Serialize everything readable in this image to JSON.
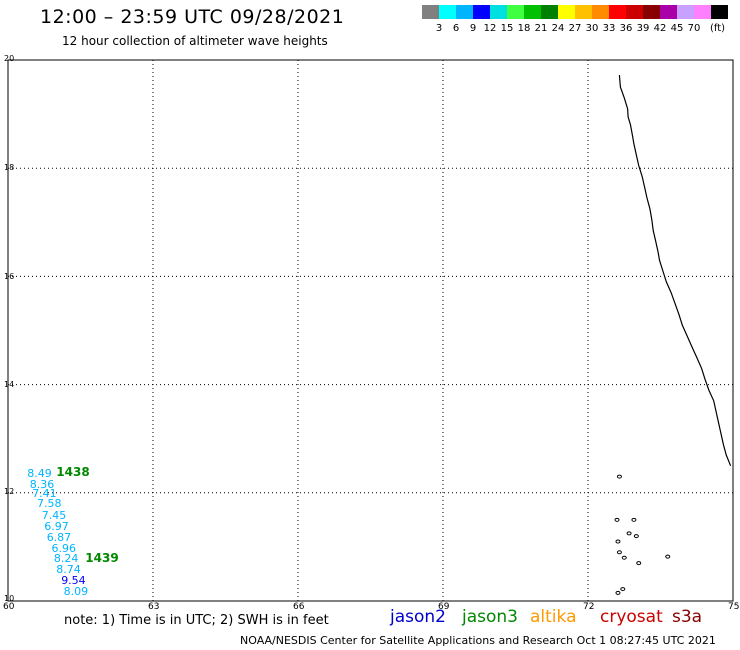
{
  "header": {
    "title": "12:00 – 23:59 UTC 09/28/2021",
    "subtitle": "12 hour collection of altimeter wave heights"
  },
  "legend": {
    "swatches": [
      {
        "color": "#808080",
        "label": ""
      },
      {
        "color": "#00ffff",
        "label": "3"
      },
      {
        "color": "#00b4ff",
        "label": "6"
      },
      {
        "color": "#0000ff",
        "label": "9"
      },
      {
        "color": "#00e0e0",
        "label": "12"
      },
      {
        "color": "#40ff40",
        "label": "15"
      },
      {
        "color": "#00c000",
        "label": "18"
      },
      {
        "color": "#008000",
        "label": "21"
      },
      {
        "color": "#ffff00",
        "label": "24"
      },
      {
        "color": "#ffc000",
        "label": "27"
      },
      {
        "color": "#ff8c00",
        "label": "30"
      },
      {
        "color": "#ff0000",
        "label": "33"
      },
      {
        "color": "#cc0000",
        "label": "36"
      },
      {
        "color": "#880000",
        "label": "39"
      },
      {
        "color": "#aa00aa",
        "label": "42"
      },
      {
        "color": "#c8a0ff",
        "label": "45"
      },
      {
        "color": "#ff80ff",
        "label": "70"
      },
      {
        "color": "#000000",
        "label": ""
      }
    ],
    "unit": "(ft)"
  },
  "map": {
    "lat_labels": [
      {
        "value": 20,
        "label": "20"
      },
      {
        "value": 18,
        "label": "18"
      },
      {
        "value": 16,
        "label": "16"
      },
      {
        "value": 14,
        "label": "14"
      },
      {
        "value": 12,
        "label": "12"
      },
      {
        "value": 10,
        "label": "10"
      }
    ],
    "lon_labels": [
      {
        "value": 60,
        "label": "60"
      },
      {
        "value": 63,
        "label": "63"
      },
      {
        "value": 66,
        "label": "66"
      },
      {
        "value": 69,
        "label": "69"
      },
      {
        "value": 72,
        "label": "72"
      },
      {
        "value": 75,
        "label": "75"
      }
    ],
    "lat_range": [
      10,
      20
    ],
    "lon_range": [
      60,
      75
    ]
  },
  "observations": [
    {
      "label": "8.49",
      "lon": 60.4,
      "lat": 12.34,
      "color": "#00b4ff"
    },
    {
      "label": "8.36",
      "lon": 60.45,
      "lat": 12.14,
      "color": "#00b4ff"
    },
    {
      "label": "7.41",
      "lon": 60.5,
      "lat": 11.98,
      "color": "#00b4ff"
    },
    {
      "label": "7.58",
      "lon": 60.6,
      "lat": 11.8,
      "color": "#00b4ff"
    },
    {
      "label": "7.45",
      "lon": 60.7,
      "lat": 11.57,
      "color": "#00b4ff"
    },
    {
      "label": "6.97",
      "lon": 60.75,
      "lat": 11.37,
      "color": "#00b4ff"
    },
    {
      "label": "6.87",
      "lon": 60.8,
      "lat": 11.17,
      "color": "#00b4ff"
    },
    {
      "label": "6.96",
      "lon": 60.9,
      "lat": 10.97,
      "color": "#00b4ff"
    },
    {
      "label": "8.24",
      "lon": 60.95,
      "lat": 10.77,
      "color": "#00b4ff"
    },
    {
      "label": "8.74",
      "lon": 61.0,
      "lat": 10.57,
      "color": "#00b4ff"
    },
    {
      "label": "9.54",
      "lon": 61.1,
      "lat": 10.37,
      "color": "#0000ff"
    },
    {
      "label": "8.09",
      "lon": 61.15,
      "lat": 10.17,
      "color": "#00b4ff"
    }
  ],
  "passes": [
    {
      "label": "1438",
      "lon": 61.0,
      "lat": 12.37
    },
    {
      "label": "1439",
      "lon": 61.6,
      "lat": 10.77
    }
  ],
  "coastline": [
    [
      72.65,
      19.72
    ],
    [
      72.67,
      19.5
    ],
    [
      72.75,
      19.3
    ],
    [
      72.82,
      19.1
    ],
    [
      72.83,
      18.95
    ],
    [
      72.88,
      18.8
    ],
    [
      72.92,
      18.6
    ],
    [
      72.95,
      18.45
    ],
    [
      73.0,
      18.25
    ],
    [
      73.05,
      18.05
    ],
    [
      73.12,
      17.85
    ],
    [
      73.17,
      17.65
    ],
    [
      73.22,
      17.45
    ],
    [
      73.28,
      17.25
    ],
    [
      73.32,
      17.05
    ],
    [
      73.35,
      16.85
    ],
    [
      73.4,
      16.65
    ],
    [
      73.45,
      16.45
    ],
    [
      73.48,
      16.3
    ],
    [
      73.55,
      16.1
    ],
    [
      73.62,
      15.9
    ],
    [
      73.72,
      15.7
    ],
    [
      73.8,
      15.5
    ],
    [
      73.88,
      15.3
    ],
    [
      73.95,
      15.1
    ],
    [
      74.05,
      14.9
    ],
    [
      74.15,
      14.7
    ],
    [
      74.25,
      14.5
    ],
    [
      74.35,
      14.3
    ],
    [
      74.42,
      14.1
    ],
    [
      74.5,
      13.9
    ],
    [
      74.6,
      13.7
    ],
    [
      74.65,
      13.5
    ],
    [
      74.7,
      13.3
    ],
    [
      74.75,
      13.1
    ],
    [
      74.8,
      12.9
    ],
    [
      74.86,
      12.7
    ],
    [
      74.95,
      12.5
    ]
  ],
  "islands": [
    [
      72.62,
      10.15
    ],
    [
      72.72,
      10.22
    ],
    [
      72.65,
      10.9
    ],
    [
      72.75,
      10.8
    ],
    [
      72.6,
      11.5
    ],
    [
      72.65,
      12.3
    ],
    [
      72.62,
      11.1
    ],
    [
      73.0,
      11.2
    ],
    [
      73.05,
      10.7
    ],
    [
      73.65,
      10.82
    ],
    [
      72.95,
      11.5
    ],
    [
      72.85,
      11.25
    ]
  ],
  "note": "note: 1) Time is in UTC; 2) SWH is in feet",
  "satellites": [
    {
      "name": "jason2",
      "color": "#0000cc"
    },
    {
      "name": "jason3",
      "color": "#008800"
    },
    {
      "name": "altika",
      "color": "#ff9900"
    },
    {
      "name": "cryosat",
      "color": "#cc0000"
    },
    {
      "name": "s3a",
      "color": "#880000"
    }
  ],
  "footer": "NOAA/NESDIS Center for Satellite Applications and Research   Oct  1 08:27:45 UTC 2021"
}
